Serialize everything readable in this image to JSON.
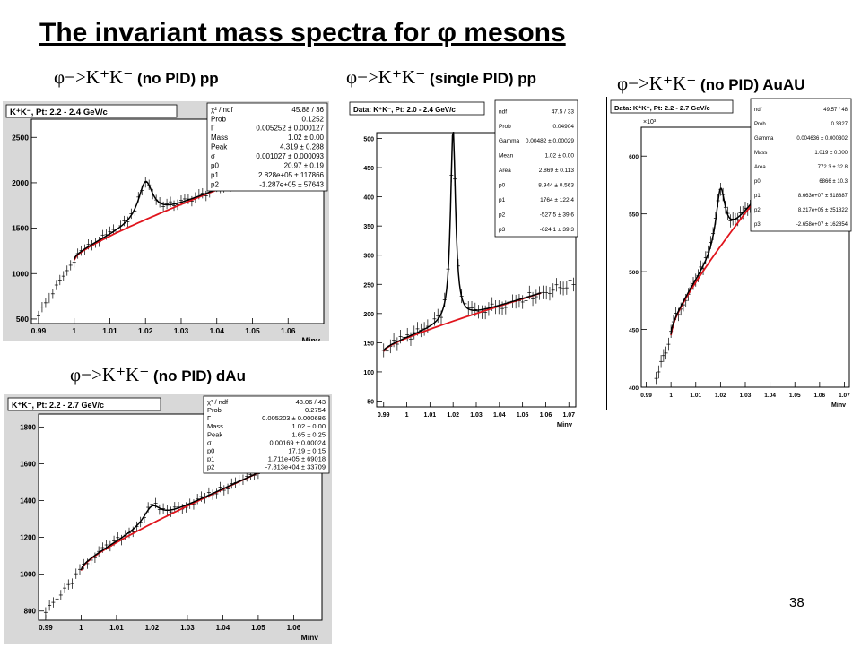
{
  "slide": {
    "title": "The invariant mass spectra for φ mesons",
    "page_number": "38",
    "colors": {
      "fit": "#000000",
      "background_fit": "#e0141c",
      "data": "#000000"
    }
  },
  "chart_data": [
    {
      "type": "scatter",
      "panel_label": {
        "sym": "φ−>K⁺K⁻",
        "text": " (no PID) pp"
      },
      "title": "K⁺K⁻, Pt: 2.2 - 2.4 GeV/c",
      "xlabel": "Minv",
      "ylabel": "",
      "xlim": [
        0.988,
        1.07
      ],
      "ylim": [
        450,
        2700
      ],
      "xticks": [
        "0.99",
        "1",
        "1.01",
        "1.02",
        "1.03",
        "1.04",
        "1.05",
        "1.06"
      ],
      "yticks": [
        "500",
        "1000",
        "1500",
        "2000",
        "2500"
      ],
      "exp_label": "",
      "peak": {
        "mass": 1.02,
        "width": 0.005,
        "height": 420
      },
      "background": {
        "x": [
          1.0,
          1.045
        ],
        "y": [
          1150,
          2000
        ]
      },
      "fit_range": [
        1.0,
        1.045
      ],
      "data_range": [
        0.99,
        1.046
      ],
      "stats": [
        [
          "χ² / ndf",
          "45.88 / 36"
        ],
        [
          "Prob",
          "0.1252"
        ],
        [
          "Γ",
          "0.005252 ± 0.000127"
        ],
        [
          "Mass",
          "1.02 ± 0.00"
        ],
        [
          "Peak",
          "4.319 ± 0.288"
        ],
        [
          "σ",
          "0.001027 ± 0.000093"
        ],
        [
          "p0",
          "20.97 ± 0.19"
        ],
        [
          "p1",
          "2.828e+05 ± 117866"
        ],
        [
          "p2",
          "-1.287e+05 ± 57643"
        ]
      ]
    },
    {
      "type": "scatter",
      "panel_label": {
        "sym": "φ−>K⁺K⁻",
        "text": " (single PID) pp"
      },
      "title": "Data: K⁺K⁻, Pt: 2.0 - 2.4 GeV/c",
      "xlabel": "Minv",
      "ylabel": "",
      "xlim": [
        0.987,
        1.073
      ],
      "ylim": [
        40,
        510
      ],
      "xticks": [
        "0.99",
        "1",
        "1.01",
        "1.02",
        "1.03",
        "1.04",
        "1.05",
        "1.06",
        "1.07"
      ],
      "yticks": [
        "50",
        "100",
        "150",
        "200",
        "250",
        "300",
        "350",
        "400",
        "450",
        "500"
      ],
      "exp_label": "",
      "peak": {
        "mass": 1.02,
        "width": 0.0026,
        "height": 330
      },
      "background": {
        "x": [
          0.99,
          1.058
        ],
        "y": [
          135,
          235
        ]
      },
      "fit_range": [
        0.99,
        1.058
      ],
      "data_range": [
        0.99,
        1.072
      ],
      "stats": [
        [
          "ndf",
          "47.5 / 33"
        ],
        [
          "Prob",
          "0.04904"
        ],
        [
          "Gamma",
          "0.00482 ± 0.00029"
        ],
        [
          "Mean",
          "1.02 ± 0.00"
        ],
        [
          "Area",
          "2.869 ± 0.113"
        ],
        [
          "p0",
          "8.944 ± 0.563"
        ],
        [
          "p1",
          "1764 ± 122.4"
        ],
        [
          "p2",
          "-527.5 ± 39.6"
        ],
        [
          "p3",
          "-624.1 ± 39.3"
        ]
      ]
    },
    {
      "type": "scatter",
      "panel_label": {
        "sym": "φ−>K⁺K⁻",
        "text": " (no PID) AuAU"
      },
      "title": "Data: K⁺K⁻, Pt: 2.2 - 2.7 GeV/c",
      "xlabel": "Minv",
      "ylabel": "",
      "xlim": [
        0.988,
        1.072
      ],
      "ylim": [
        400,
        625
      ],
      "xticks": [
        "0.99",
        "1",
        "1.01",
        "1.02",
        "1.03",
        "1.04",
        "1.05",
        "1.06",
        "1.07"
      ],
      "yticks": [
        "400",
        "450",
        "500",
        "550",
        "600"
      ],
      "exp_label": "×10³",
      "peak": {
        "mass": 1.02,
        "width": 0.0045,
        "height": 50
      },
      "background": {
        "x": [
          1.0,
          1.05
        ],
        "y": [
          445,
          605
        ]
      },
      "fit_range": [
        1.0,
        1.05
      ],
      "data_range": [
        0.994,
        1.05
      ],
      "stats": [
        [
          "ndf",
          "49.57 / 48"
        ],
        [
          "Prob",
          "0.3327"
        ],
        [
          "Gamma",
          "0.004636 ± 0.000302"
        ],
        [
          "Mass",
          "1.019 ± 0.000"
        ],
        [
          "Area",
          "772.3 ± 32.8"
        ],
        [
          "p0",
          "6866 ± 10.3"
        ],
        [
          "p1",
          "8.663e+07 ± 518887"
        ],
        [
          "p2",
          "8.217e+05 ± 251822"
        ],
        [
          "p3",
          "-2.658e+07 ± 162854"
        ]
      ]
    },
    {
      "type": "scatter",
      "panel_label": {
        "sym": "φ−>K⁺K⁻",
        "text": " (no PID) dAu"
      },
      "title": "K⁺K⁻, Pt: 2.2 - 2.7 GeV/c",
      "xlabel": "Minv",
      "ylabel": "",
      "xlim": [
        0.988,
        1.068
      ],
      "ylim": [
        750,
        1870
      ],
      "xticks": [
        "0.99",
        "1",
        "1.01",
        "1.02",
        "1.03",
        "1.04",
        "1.05",
        "1.06"
      ],
      "yticks": [
        "800",
        "1000",
        "1200",
        "1400",
        "1600",
        "1800"
      ],
      "exp_label": "",
      "peak": {
        "mass": 1.02,
        "width": 0.006,
        "height": 95
      },
      "background": {
        "x": [
          1.0,
          1.05
        ],
        "y": [
          1020,
          1550
        ]
      },
      "fit_range": [
        1.0,
        1.05
      ],
      "data_range": [
        0.99,
        1.05
      ],
      "stats": [
        [
          "χ² / ndf",
          "48.06 / 43"
        ],
        [
          "Prob",
          "0.2754"
        ],
        [
          "Γ",
          "0.005203 ± 0.000686"
        ],
        [
          "Mass",
          "1.02 ± 0.00"
        ],
        [
          "Peak",
          "1.65 ± 0.25"
        ],
        [
          "σ",
          "0.00169 ± 0.00024"
        ],
        [
          "p0",
          "17.19 ± 0.15"
        ],
        [
          "p1",
          "1.711e+05 ± 69018"
        ],
        [
          "p2",
          "-7.813e+04 ± 33709"
        ]
      ]
    }
  ]
}
